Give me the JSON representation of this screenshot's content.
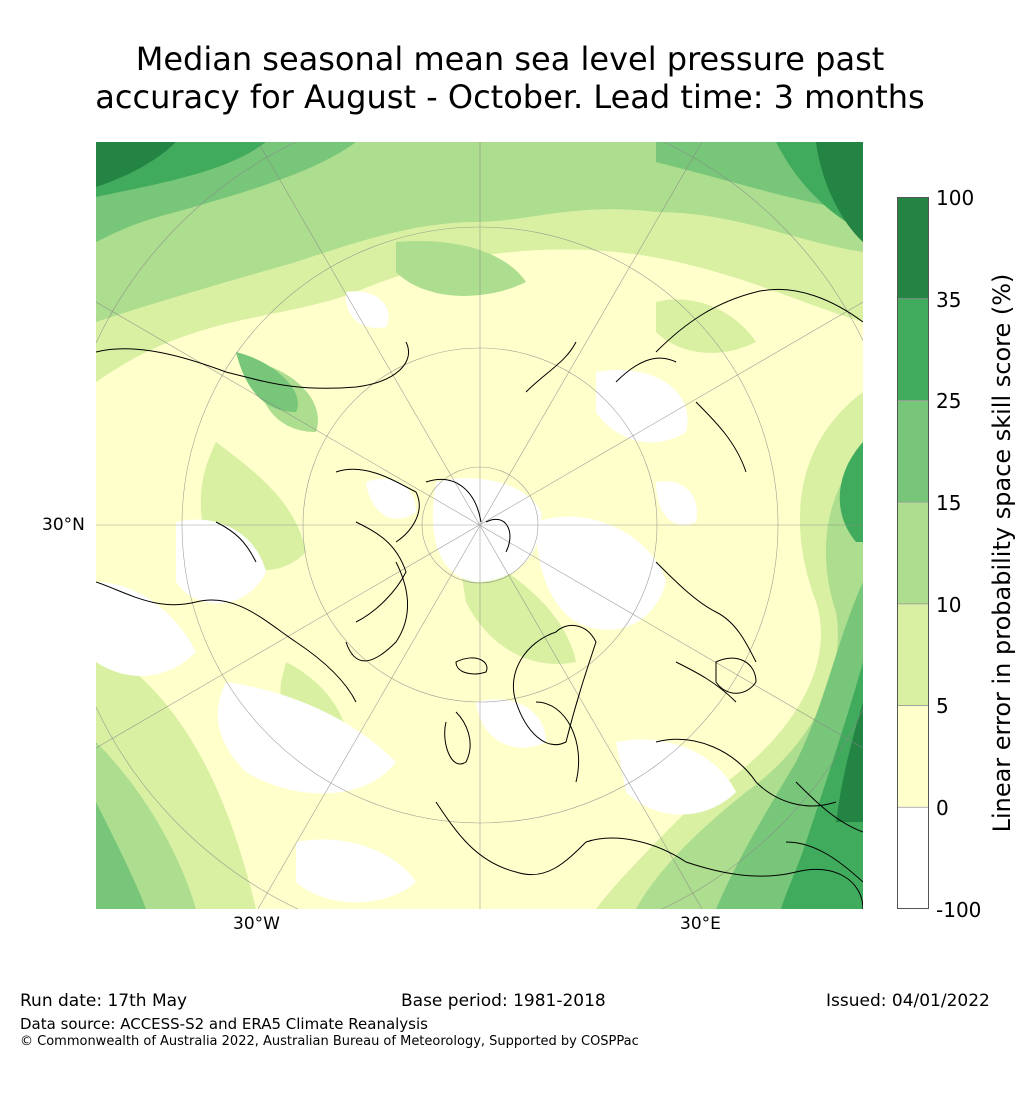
{
  "title_line1": "Median seasonal mean sea level pressure past",
  "title_line2": "accuracy for August - October. Lead time: 3 months",
  "map": {
    "labels": {
      "lat": "30°N",
      "lon_west": "30°W",
      "lon_east": "30°E"
    },
    "colors": {
      "ocean_base": "#ffffcc",
      "band_0_5": "#ffffcc",
      "band_5_10": "#d9f0a3",
      "band_10_15": "#addd8e",
      "band_15_25": "#78c679",
      "band_25_35": "#41ab5d",
      "band_35_100": "#238443",
      "below_0": "#ffffff"
    }
  },
  "colorbar": {
    "ticks": [
      "100",
      "35",
      "25",
      "15",
      "10",
      "5",
      "0",
      "-100"
    ],
    "label": "Linear error in probability space skill score (%)",
    "colors": [
      "#238443",
      "#41ab5d",
      "#78c679",
      "#addd8e",
      "#d9f0a3",
      "#ffffcc",
      "#ffffff"
    ]
  },
  "footer": {
    "run_date": "Run date: 17th May",
    "base_period": "Base period: 1981-2018",
    "issued": "Issued: 04/01/2022",
    "data_source": "Data source: ACCESS-S2 and ERA5 Climate Reanalysis",
    "copyright": "© Commonwealth of Australia 2022, Australian Bureau of Meteorology, Supported by COSPPac"
  }
}
